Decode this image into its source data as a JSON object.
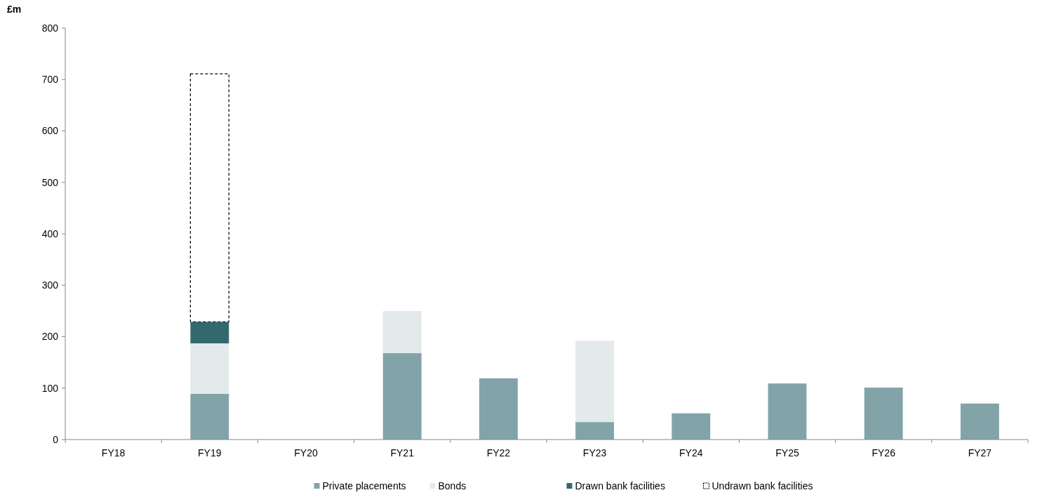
{
  "chart_data": {
    "type": "bar",
    "stacked": true,
    "ylabel": "£m",
    "categories": [
      "FY18",
      "FY19",
      "FY20",
      "FY21",
      "FY22",
      "FY23",
      "FY24",
      "FY25",
      "FY26",
      "FY27"
    ],
    "series": [
      {
        "name": "Private placements",
        "color": "#82a4a9",
        "values": [
          null,
          89,
          null,
          168,
          119,
          34,
          51,
          109,
          101,
          70
        ]
      },
      {
        "name": "Bonds",
        "color": "#e4e9eb",
        "values": [
          null,
          98,
          null,
          82,
          null,
          158,
          null,
          null,
          null,
          null
        ]
      },
      {
        "name": "Drawn bank facilities",
        "color": "#33686f",
        "values": [
          null,
          42,
          null,
          null,
          null,
          null,
          null,
          null,
          null,
          null
        ]
      },
      {
        "name": "Undrawn bank facilities",
        "color": "#ffffff",
        "line_style": "dashed",
        "values": [
          null,
          482,
          null,
          null,
          null,
          null,
          null,
          null,
          null,
          null
        ]
      }
    ],
    "ylim": [
      0,
      800
    ],
    "yticks": [
      0,
      100,
      200,
      300,
      400,
      500,
      600,
      700,
      800
    ],
    "grid": false,
    "legend": "bottom"
  }
}
